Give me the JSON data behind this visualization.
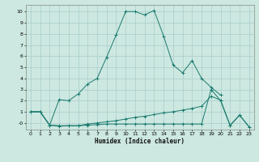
{
  "title": "",
  "xlabel": "Humidex (Indice chaleur)",
  "bg_color": "#cce8e0",
  "grid_color": "#aacccc",
  "line_color": "#1a7a6e",
  "xlim": [
    -0.5,
    23.5
  ],
  "ylim": [
    -0.6,
    10.6
  ],
  "xticks": [
    0,
    1,
    2,
    3,
    4,
    5,
    6,
    7,
    8,
    9,
    10,
    11,
    12,
    13,
    14,
    15,
    16,
    17,
    18,
    19,
    20,
    21,
    22,
    23
  ],
  "yticks": [
    0,
    1,
    2,
    3,
    4,
    5,
    6,
    7,
    8,
    9,
    10
  ],
  "line1_x": [
    0,
    1,
    2,
    3,
    4,
    5,
    6,
    7,
    8,
    9,
    10,
    11,
    12,
    13,
    14,
    15,
    16,
    17,
    18,
    19,
    20
  ],
  "line1_y": [
    1.0,
    1.0,
    -0.2,
    2.1,
    2.0,
    2.6,
    3.5,
    4.0,
    5.9,
    7.9,
    10.0,
    10.0,
    9.7,
    10.1,
    7.8,
    5.2,
    4.5,
    5.6,
    4.0,
    3.2,
    2.5
  ],
  "line2_x": [
    0,
    1,
    2,
    3,
    4,
    5,
    6,
    7,
    8,
    9,
    10,
    11,
    12,
    13,
    14,
    15,
    16,
    17,
    18,
    19,
    20,
    21,
    22,
    23
  ],
  "line2_y": [
    1.0,
    1.0,
    -0.2,
    -0.25,
    -0.25,
    -0.25,
    -0.1,
    0.0,
    0.1,
    0.2,
    0.35,
    0.5,
    0.6,
    0.75,
    0.9,
    1.0,
    1.15,
    1.3,
    1.5,
    2.4,
    2.05,
    -0.2,
    0.7,
    -0.35
  ],
  "line3_x": [
    0,
    1,
    2,
    3,
    4,
    5,
    6,
    7,
    8,
    9,
    10,
    11,
    12,
    13,
    14,
    15,
    16,
    17,
    18,
    19,
    20,
    21,
    22,
    23
  ],
  "line3_y": [
    1.0,
    1.0,
    -0.2,
    -0.3,
    -0.25,
    -0.25,
    -0.2,
    -0.15,
    -0.1,
    -0.1,
    -0.1,
    -0.1,
    -0.1,
    -0.1,
    -0.1,
    -0.1,
    -0.1,
    -0.1,
    -0.1,
    3.0,
    2.0,
    -0.25,
    0.7,
    -0.35
  ]
}
